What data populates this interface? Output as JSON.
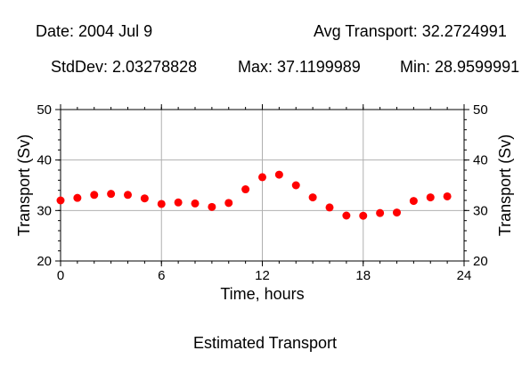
{
  "header": {
    "date": "Date: 2004 Jul 9",
    "avg": "Avg Transport: 32.2724991",
    "stddev": "StdDev: 2.03278828",
    "max": "Max: 37.1199989",
    "min": "Min: 28.9599991"
  },
  "caption": "Estimated Transport",
  "colors": {
    "point": "#ff0000",
    "grid": "#b0b0b0",
    "axis": "#000000"
  },
  "chart_data": {
    "type": "scatter",
    "xlabel": "Time, hours",
    "ylabel": "Transport (Sv)",
    "xlim": [
      0,
      24
    ],
    "ylim": [
      20,
      50
    ],
    "xticks": [
      0,
      6,
      12,
      18,
      24
    ],
    "yticks": [
      20,
      30,
      40,
      50
    ],
    "grid": true,
    "x": [
      0,
      1,
      2,
      3,
      4,
      5,
      6,
      7,
      8,
      9,
      10,
      11,
      12,
      13,
      14,
      15,
      16,
      17,
      18,
      19,
      20,
      21,
      22,
      23
    ],
    "y": [
      32.0,
      32.5,
      33.1,
      33.3,
      33.1,
      32.4,
      31.3,
      31.6,
      31.4,
      30.7,
      31.5,
      34.2,
      36.6,
      37.1,
      35.0,
      32.6,
      30.6,
      29.0,
      28.96,
      29.5,
      29.6,
      31.9,
      32.6,
      32.8
    ]
  }
}
